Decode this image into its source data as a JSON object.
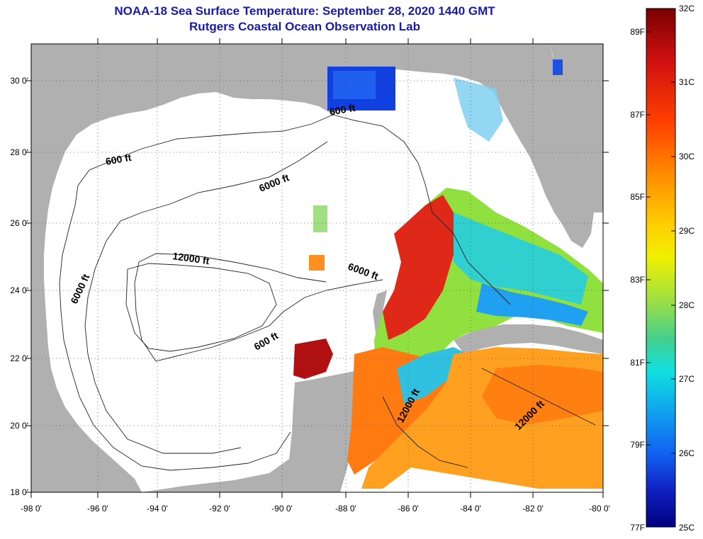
{
  "header": {
    "title": "NOAA-18 Sea Surface Temperature:  September 28, 2020 1440 GMT",
    "subtitle": "Rutgers Coastal Ocean Observation Lab"
  },
  "axes": {
    "latitude_labels": [
      "30 0'",
      "28 0'",
      "26 0'",
      "24 0'",
      "22 0'",
      "20 0'",
      "18 0'"
    ],
    "longitude_labels": [
      "-98 0'",
      "-96 0'",
      "-94 0'",
      "-92 0'",
      "-90 0'",
      "-88 0'",
      "-86 0'",
      "-84 0'",
      "-82 0'",
      "-80 0'"
    ]
  },
  "contours": {
    "depth_600": "600 ft",
    "depth_6000": "6000 ft",
    "depth_12000": "12000 ft"
  },
  "colorbar": {
    "fahrenheit": [
      "89F",
      "87F",
      "85F",
      "83F",
      "81F",
      "79F",
      "77F"
    ],
    "celsius": [
      "32C",
      "31C",
      "30C",
      "29C",
      "28C",
      "27C",
      "26C",
      "25C"
    ],
    "colors": [
      "#7a0000",
      "#d01010",
      "#ff5a00",
      "#ffa000",
      "#f0f000",
      "#90e040",
      "#20d0c0",
      "#10a0f0",
      "#1040e0",
      "#000080"
    ]
  },
  "colors": {
    "land": "#b0b0b0",
    "water_no_data": "#ffffff",
    "title": "#1a1aa8"
  }
}
